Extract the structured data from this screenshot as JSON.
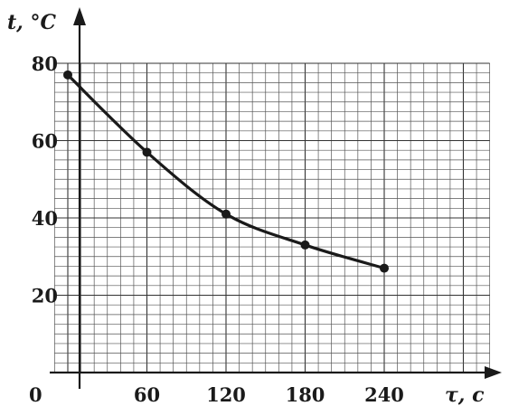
{
  "chart_data": {
    "type": "line",
    "title": "",
    "xlabel": "τ, c",
    "ylabel": "t, °C",
    "origin_label": "0",
    "x_ticks": [
      60,
      120,
      180,
      240
    ],
    "y_ticks": [
      20,
      40,
      60,
      80
    ],
    "xlim": [
      0,
      300
    ],
    "ylim": [
      0,
      85
    ],
    "grid": true,
    "series": [
      {
        "x": [
          0,
          60,
          120,
          180,
          240
        ],
        "y": [
          77,
          57,
          41,
          33,
          27
        ]
      }
    ]
  }
}
